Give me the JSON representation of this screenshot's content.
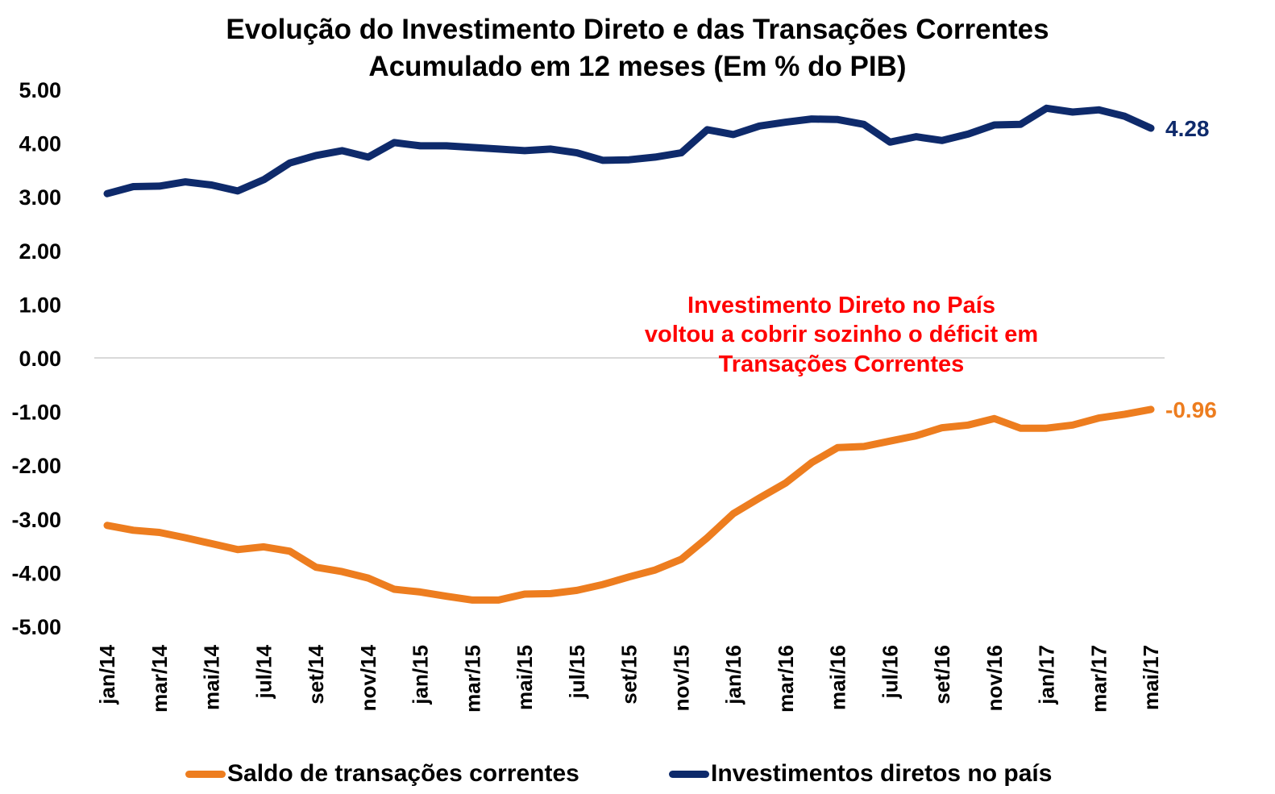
{
  "chart_data": {
    "type": "line",
    "title": "Evolução do Investimento Direto e das Transações Correntes",
    "subtitle": "Acumulado em 12 meses (Em % do PIB)",
    "xlabel": "",
    "ylabel": "",
    "ylim": [
      -5,
      5
    ],
    "yticks": [
      "5.00",
      "4.00",
      "3.00",
      "2.00",
      "1.00",
      "0.00",
      "-1.00",
      "-2.00",
      "-3.00",
      "-4.00",
      "-5.00"
    ],
    "ytick_values": [
      5,
      4,
      3,
      2,
      1,
      0,
      -1,
      -2,
      -3,
      -4,
      -5
    ],
    "x": [
      "jan/14",
      "fev/14",
      "mar/14",
      "abr/14",
      "mai/14",
      "jun/14",
      "jul/14",
      "ago/14",
      "set/14",
      "out/14",
      "nov/14",
      "dez/14",
      "jan/15",
      "fev/15",
      "mar/15",
      "abr/15",
      "mai/15",
      "jun/15",
      "jul/15",
      "ago/15",
      "set/15",
      "out/15",
      "nov/15",
      "dez/15",
      "jan/16",
      "fev/16",
      "mar/16",
      "abr/16",
      "mai/16",
      "jun/16",
      "jul/16",
      "ago/16",
      "set/16",
      "out/16",
      "nov/16",
      "dez/16",
      "jan/17",
      "fev/17",
      "mar/17",
      "abr/17",
      "mai/17"
    ],
    "xticks": [
      "jan/14",
      "mar/14",
      "mai/14",
      "jul/14",
      "set/14",
      "nov/14",
      "jan/15",
      "mar/15",
      "mai/15",
      "jul/15",
      "set/15",
      "nov/15",
      "jan/16",
      "mar/16",
      "mai/16",
      "jul/16",
      "set/16",
      "nov/16",
      "jan/17",
      "mar/17",
      "mai/17"
    ],
    "grid": false,
    "legend_position": "bottom",
    "series": [
      {
        "name": "Saldo de transações correntes",
        "color": "#ed7d1f",
        "end_label": "-0.96",
        "values": [
          -3.12,
          -3.21,
          -3.25,
          -3.35,
          -3.46,
          -3.57,
          -3.52,
          -3.6,
          -3.9,
          -3.98,
          -4.1,
          -4.31,
          -4.36,
          -4.44,
          -4.51,
          -4.51,
          -4.4,
          -4.39,
          -4.33,
          -4.22,
          -4.08,
          -3.95,
          -3.75,
          -3.35,
          -2.9,
          -2.61,
          -2.33,
          -1.95,
          -1.67,
          -1.65,
          -1.55,
          -1.45,
          -1.3,
          -1.25,
          -1.13,
          -1.31,
          -1.31,
          -1.25,
          -1.12,
          -1.05,
          -0.96
        ]
      },
      {
        "name": "Investimentos diretos no país",
        "color": "#0e2a6b",
        "end_label": "4.28",
        "values": [
          3.06,
          3.19,
          3.2,
          3.28,
          3.22,
          3.11,
          3.32,
          3.63,
          3.77,
          3.86,
          3.74,
          4.01,
          3.95,
          3.95,
          3.92,
          3.89,
          3.86,
          3.89,
          3.82,
          3.68,
          3.69,
          3.74,
          3.82,
          4.25,
          4.16,
          4.32,
          4.39,
          4.45,
          4.44,
          4.35,
          4.02,
          4.12,
          4.05,
          4.17,
          4.34,
          4.35,
          4.65,
          4.58,
          4.62,
          4.5,
          4.28
        ]
      }
    ],
    "annotation": {
      "lines": [
        "Investimento Direto no País",
        "voltou a cobrir sozinho o déficit em",
        "Transações Correntes"
      ],
      "color": "#ff0000"
    }
  }
}
